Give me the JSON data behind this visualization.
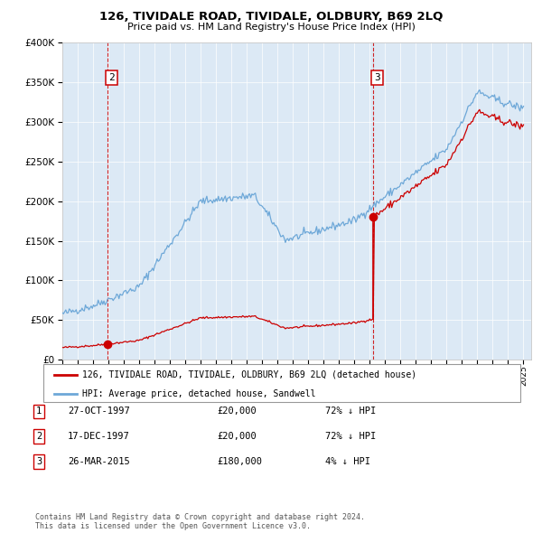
{
  "title": "126, TIVIDALE ROAD, TIVIDALE, OLDBURY, B69 2LQ",
  "subtitle": "Price paid vs. HM Land Registry's House Price Index (HPI)",
  "plot_bg_color": "#dce9f5",
  "hpi_color": "#6ea8d8",
  "price_color": "#cc0000",
  "vline_years": [
    1997.96,
    2015.23
  ],
  "vline_labels": [
    "2",
    "3"
  ],
  "sale_markers": [
    {
      "year": 1997.96,
      "price": 20000
    },
    {
      "year": 2015.23,
      "price": 180000
    }
  ],
  "t1": 1997.82,
  "t2": 1997.96,
  "t3": 2015.23,
  "price1": 20000,
  "price3": 180000,
  "y_min": 0,
  "y_max": 400000,
  "y_ticks": [
    0,
    50000,
    100000,
    150000,
    200000,
    250000,
    300000,
    350000,
    400000
  ],
  "x_min": 1995,
  "x_max": 2025.5,
  "legend_price_label": "126, TIVIDALE ROAD, TIVIDALE, OLDBURY, B69 2LQ (detached house)",
  "legend_hpi_label": "HPI: Average price, detached house, Sandwell",
  "table_rows": [
    {
      "num": "1",
      "date": "27-OCT-1997",
      "price": "£20,000",
      "hpi": "72% ↓ HPI"
    },
    {
      "num": "2",
      "date": "17-DEC-1997",
      "price": "£20,000",
      "hpi": "72% ↓ HPI"
    },
    {
      "num": "3",
      "date": "26-MAR-2015",
      "price": "£180,000",
      "hpi": "4% ↓ HPI"
    }
  ],
  "footer": "Contains HM Land Registry data © Crown copyright and database right 2024.\nThis data is licensed under the Open Government Licence v3.0."
}
